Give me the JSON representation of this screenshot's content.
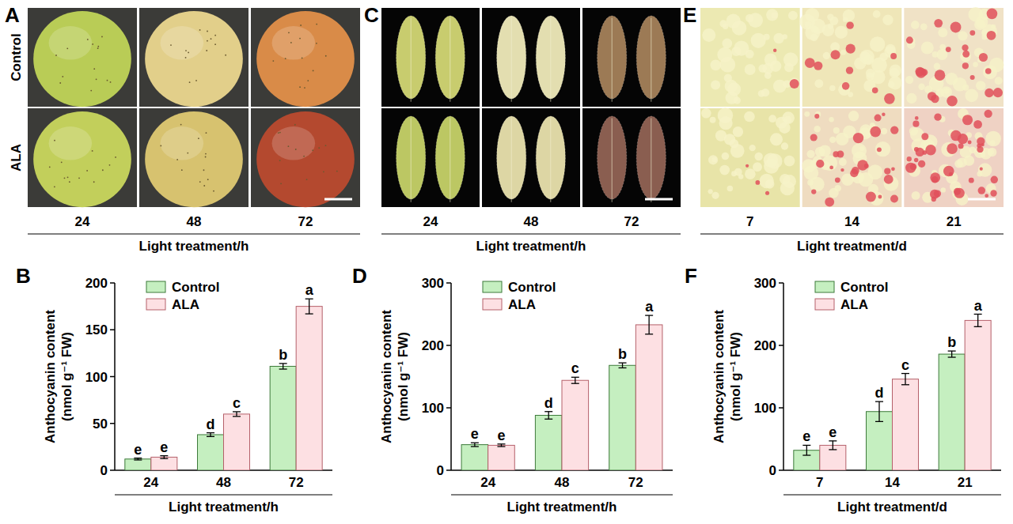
{
  "photo_panels": [
    {
      "panel": "A",
      "rows": [
        "Control",
        "ALA"
      ],
      "columns": [
        "24",
        "48",
        "72"
      ],
      "x_label": "Light treatment/h"
    },
    {
      "panel": "C",
      "columns": [
        "24",
        "48",
        "72"
      ],
      "x_label": "Light treatment/h"
    },
    {
      "panel": "E",
      "columns": [
        "7",
        "14",
        "21"
      ],
      "x_label": "Light treatment/d"
    }
  ],
  "chart_data": [
    {
      "type": "bar",
      "panel": "B",
      "categories": [
        "24",
        "48",
        "72"
      ],
      "x_label": "Light treatment/h",
      "y_label": "Anthocyanin content (nmol g⁻¹ FW)",
      "ylim": [
        0,
        200
      ],
      "yticks": [
        0,
        50,
        100,
        150,
        200
      ],
      "grid": false,
      "legend": "upper left",
      "series": [
        {
          "name": "Control",
          "color": "#c5efc0",
          "values": [
            12,
            38,
            111
          ],
          "errors": [
            1,
            2,
            3
          ],
          "letters": [
            "e",
            "d",
            "b"
          ]
        },
        {
          "name": "ALA",
          "color": "#fde0e3",
          "values": [
            14,
            60,
            175
          ],
          "errors": [
            1.5,
            2.5,
            8
          ],
          "letters": [
            "e",
            "c",
            "a"
          ]
        }
      ]
    },
    {
      "type": "bar",
      "panel": "D",
      "categories": [
        "24",
        "48",
        "72"
      ],
      "x_label": "Light treatment/h",
      "y_label": "Anthocyanin content (nmol g⁻¹ FW)",
      "ylim": [
        0,
        300
      ],
      "yticks": [
        0,
        100,
        200,
        300
      ],
      "grid": false,
      "legend": "upper left",
      "series": [
        {
          "name": "Control",
          "color": "#c5efc0",
          "values": [
            41,
            88,
            168
          ],
          "errors": [
            3,
            6,
            4
          ],
          "letters": [
            "e",
            "d",
            "b"
          ]
        },
        {
          "name": "ALA",
          "color": "#fde0e3",
          "values": [
            40,
            144,
            233
          ],
          "errors": [
            2,
            5,
            15
          ],
          "letters": [
            "e",
            "c",
            "a"
          ]
        }
      ]
    },
    {
      "type": "bar",
      "panel": "F",
      "categories": [
        "7",
        "14",
        "21"
      ],
      "x_label": "Light treatment/d",
      "y_label": "Anthocyanin content (nmol g⁻¹ FW)",
      "ylim": [
        0,
        300
      ],
      "yticks": [
        0,
        100,
        200,
        300
      ],
      "grid": false,
      "legend": "upper left",
      "series": [
        {
          "name": "Control",
          "color": "#c5efc0",
          "values": [
            32,
            94,
            186
          ],
          "errors": [
            8,
            16,
            5
          ],
          "letters": [
            "e",
            "d",
            "b"
          ]
        },
        {
          "name": "ALA",
          "color": "#fde0e3",
          "values": [
            40,
            146,
            240
          ],
          "errors": [
            7,
            9,
            10
          ],
          "letters": [
            "e",
            "c",
            "a"
          ]
        }
      ]
    }
  ]
}
